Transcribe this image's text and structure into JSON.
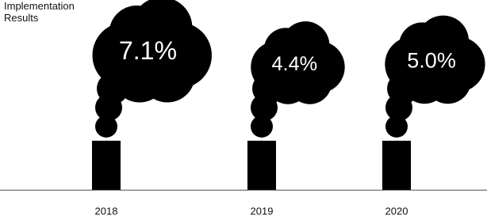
{
  "chart_data": {
    "type": "pictorial",
    "title": "Implementation Results",
    "categories": [
      "2018",
      "2019",
      "2020"
    ],
    "values": [
      7.1,
      4.4,
      5.0
    ],
    "value_labels": [
      "7.1%",
      "4.4%",
      "5.0%"
    ],
    "color": "#000000"
  }
}
